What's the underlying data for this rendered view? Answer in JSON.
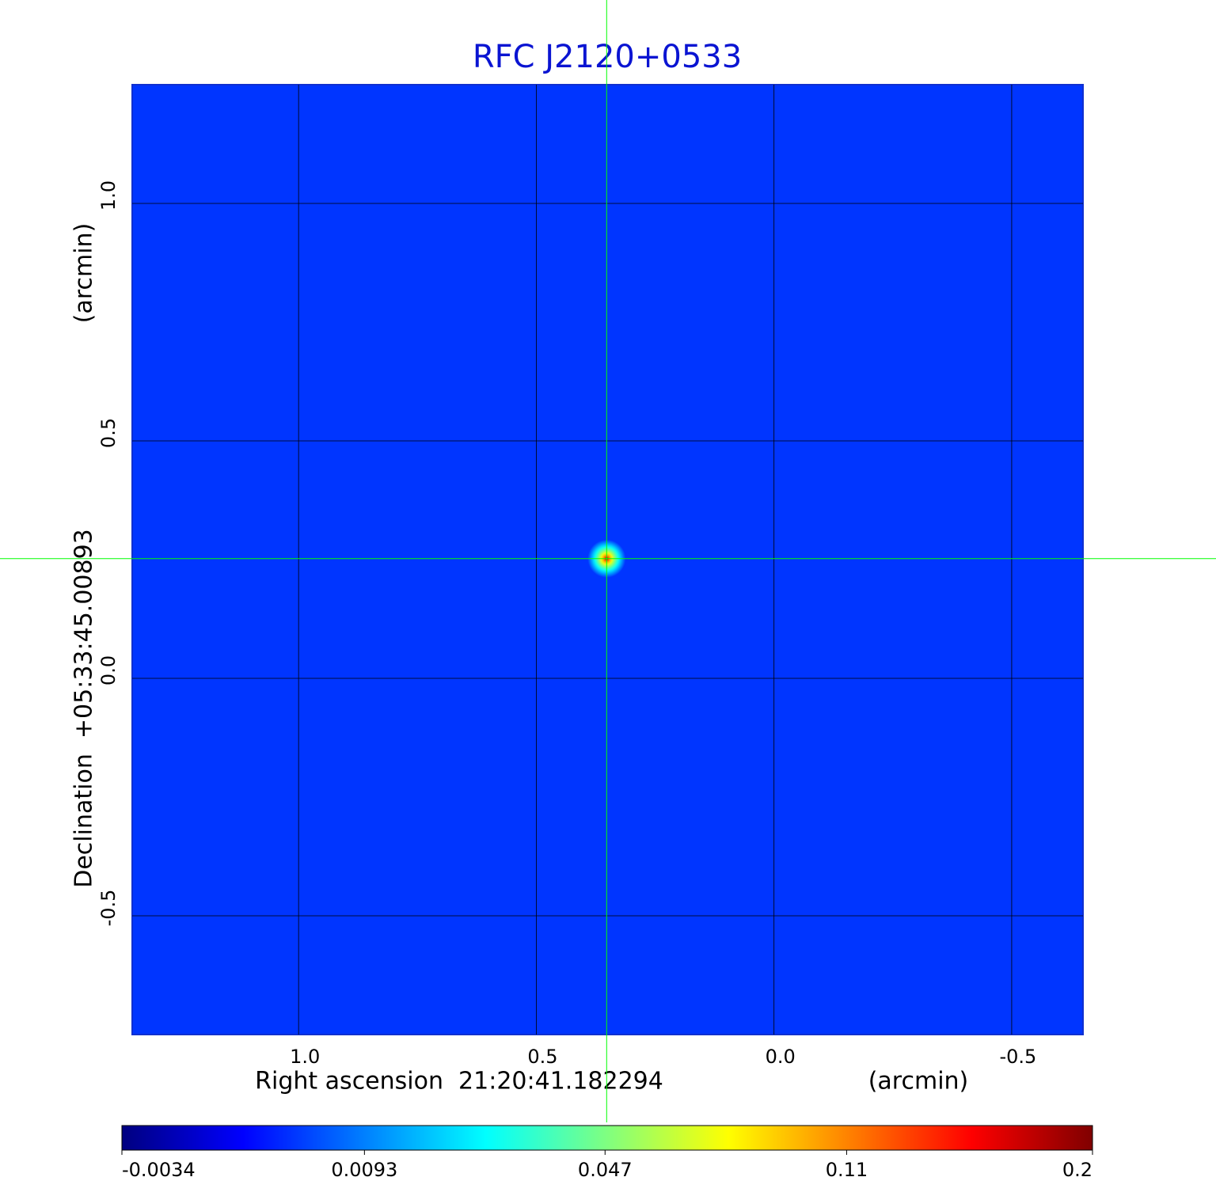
{
  "chart_data": {
    "type": "image",
    "title": "RFC J2120+0533",
    "x_label": "Right ascension  21:20:41.182294",
    "x_unit": "(arcmin)",
    "y_label": "Declination  +05:33:45.00893",
    "y_unit": "(arcmin)",
    "xlim": [
      1.35,
      -0.65
    ],
    "ylim": [
      -0.75,
      1.25
    ],
    "xticks": [
      {
        "value": 1,
        "label": "1.0"
      },
      0.5,
      {
        "value": 0,
        "label": "0.0"
      },
      -0.5
    ],
    "yticks": [
      -0.5,
      {
        "value": 0,
        "label": "0.0"
      },
      0.5,
      {
        "value": 1,
        "label": "1.0"
      }
    ],
    "grid": true,
    "colormap": "jet",
    "color_scale": "sqrt",
    "clim": [
      -0.0034,
      0.2
    ],
    "colorbar_ticks": [
      -0.0034,
      0.0093,
      0.047,
      0.11,
      0.2
    ],
    "background": 0.003,
    "source": {
      "x": 0.352,
      "y": 0.252,
      "peak": 0.2
    },
    "crosshair_color": "#00ff00"
  }
}
